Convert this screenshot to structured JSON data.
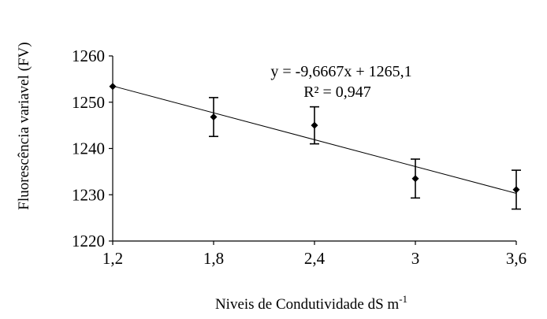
{
  "chart_data": {
    "type": "scatter",
    "x": [
      1.2,
      1.8,
      2.4,
      3.0,
      3.6
    ],
    "xtick_labels": [
      "1,2",
      "1,8",
      "2,4",
      "3",
      "3,6"
    ],
    "series": [
      {
        "values": [
          1253.4,
          1246.8,
          1245.0,
          1233.5,
          1231.1
        ],
        "error": [
          0.0,
          4.2,
          4.0,
          4.2,
          4.2
        ],
        "marker": "diamond",
        "color": "#000000"
      }
    ],
    "trendline": {
      "type": "linear",
      "slope": -9.6667,
      "intercept": 1265.1,
      "equation": "y = -9,6667x + 1265,1",
      "r2_label": "R² = 0,947",
      "color": "#000000"
    },
    "xlabel": "Niveis de Condutividade dS m",
    "xlabel_superscript": "-1",
    "ylabel": "Fluorescência variavel  (FV)",
    "xlim": [
      1.2,
      3.6
    ],
    "ylim": [
      1220,
      1260
    ],
    "yticks": [
      1220,
      1230,
      1240,
      1250,
      1260
    ],
    "grid": false,
    "legend": "none"
  }
}
